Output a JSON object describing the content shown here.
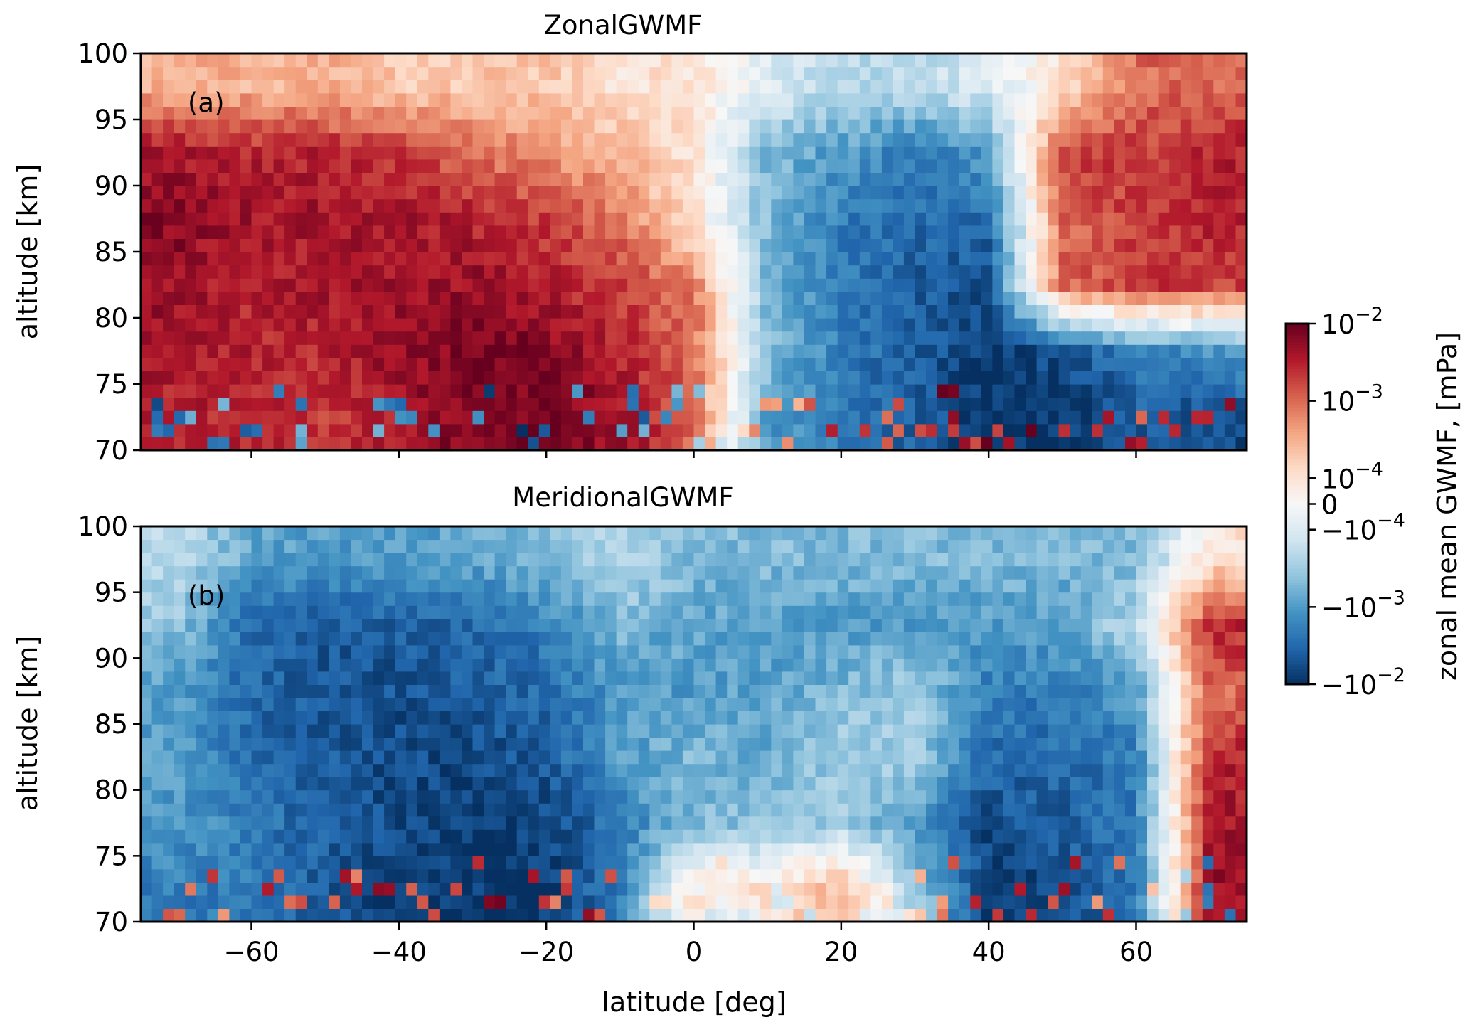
{
  "chart_data": [
    {
      "type": "heatmap",
      "title": "ZonalGWMF",
      "panel_label": "(a)",
      "xlabel": "",
      "ylabel": "altitude [km]",
      "xlim": [
        -75,
        75
      ],
      "ylim": [
        70,
        100
      ],
      "xticks": [
        -60,
        -40,
        -20,
        0,
        20,
        40,
        60
      ],
      "xtick_labels_shown": false,
      "yticks": [
        70,
        75,
        80,
        85,
        90,
        95,
        100
      ],
      "ytick_labels": [
        "70",
        "75",
        "80",
        "85",
        "90",
        "95",
        "100"
      ],
      "colormap": "RdBu_r",
      "approx_grid": {
        "latitude": [
          -70,
          -60,
          -50,
          -40,
          -30,
          -20,
          -10,
          0,
          10,
          20,
          30,
          40,
          50,
          60,
          70
        ],
        "altitude": [
          72.5,
          77.5,
          82.5,
          87.5,
          92.5,
          97.5
        ],
        "values_mPa": [
          [
            0.003,
            0.003,
            0.002,
            0.004,
            0.008,
            0.008,
            0.005,
            0.001,
            -0.001,
            -0.002,
            -0.004,
            -0.009,
            -0.009,
            -0.004,
            -0.006
          ],
          [
            0.004,
            0.003,
            0.003,
            0.005,
            0.007,
            0.007,
            0.003,
            0.001,
            -0.0004,
            -0.002,
            -0.004,
            -0.008,
            -0.005,
            -0.002,
            -0.001
          ],
          [
            0.005,
            0.003,
            0.004,
            0.004,
            0.005,
            0.003,
            0.002,
            0.0008,
            -0.0006,
            -0.002,
            -0.004,
            -0.005,
            0.001,
            0.002,
            0.002
          ],
          [
            0.006,
            0.004,
            0.004,
            0.004,
            0.003,
            0.002,
            0.0008,
            0.0001,
            -0.0005,
            -0.002,
            -0.003,
            -0.003,
            0.001,
            0.002,
            0.003
          ],
          [
            0.004,
            0.003,
            0.003,
            0.002,
            0.001,
            0.0005,
            0.0003,
            0.0001,
            -0.0005,
            -0.001,
            -0.002,
            -0.001,
            0.002,
            0.002,
            0.003
          ],
          [
            0.0003,
            0.0003,
            0.0003,
            0.0002,
            0.0002,
            0.0002,
            0.0001,
            0.0001,
            -0.0001,
            -0.0002,
            -0.0002,
            -0.0001,
            0.0001,
            0.001,
            0.001
          ]
        ]
      }
    },
    {
      "type": "heatmap",
      "title": "MeridionalGWMF",
      "panel_label": "(b)",
      "xlabel": "latitude [deg]",
      "ylabel": "altitude [km]",
      "xlim": [
        -75,
        75
      ],
      "ylim": [
        70,
        100
      ],
      "xticks": [
        -60,
        -40,
        -20,
        0,
        20,
        40,
        60
      ],
      "xtick_labels": [
        "−60",
        "−40",
        "−20",
        "0",
        "20",
        "40",
        "60"
      ],
      "yticks": [
        70,
        75,
        80,
        85,
        90,
        95,
        100
      ],
      "ytick_labels": [
        "70",
        "75",
        "80",
        "85",
        "90",
        "95",
        "100"
      ],
      "colormap": "RdBu_r",
      "approx_grid": {
        "latitude": [
          -70,
          -60,
          -50,
          -40,
          -30,
          -20,
          -10,
          0,
          10,
          20,
          30,
          40,
          50,
          60,
          70
        ],
        "altitude": [
          72.5,
          77.5,
          82.5,
          87.5,
          92.5,
          97.5
        ],
        "values_mPa": [
          [
            -0.002,
            -0.002,
            -0.004,
            -0.008,
            -0.008,
            -0.008,
            -0.002,
            0.0001,
            0.0001,
            0.0003,
            -0.0003,
            -0.008,
            -0.006,
            -0.002,
            0.005
          ],
          [
            -0.001,
            -0.002,
            -0.004,
            -0.006,
            -0.008,
            -0.007,
            -0.002,
            -0.0005,
            -0.0004,
            -0.0003,
            -0.001,
            -0.006,
            -0.004,
            -0.002,
            0.004
          ],
          [
            -0.001,
            -0.003,
            -0.004,
            -0.006,
            -0.006,
            -0.004,
            -0.001,
            -0.0005,
            -0.0008,
            -0.0003,
            -0.0003,
            -0.003,
            -0.003,
            -0.002,
            0.003
          ],
          [
            -0.001,
            -0.003,
            -0.005,
            -0.005,
            -0.004,
            -0.003,
            -0.001,
            -0.001,
            -0.0008,
            -0.0005,
            -0.0003,
            -0.002,
            -0.002,
            -0.001,
            0.001
          ],
          [
            -0.0004,
            -0.003,
            -0.004,
            -0.004,
            -0.003,
            -0.002,
            -0.0005,
            -0.0008,
            -0.001,
            -0.001,
            -0.001,
            -0.001,
            -0.001,
            -0.0002,
            0.003
          ],
          [
            -0.0002,
            -0.0008,
            -0.001,
            -0.001,
            -0.0008,
            -0.0005,
            -0.0002,
            -0.0005,
            -0.0005,
            -0.0005,
            -0.0005,
            -0.0005,
            -0.0005,
            -0.0005,
            0.0001
          ]
        ]
      }
    }
  ],
  "colorbar": {
    "label": "zonal mean GWMF, [mPa]",
    "scale": "symlog",
    "range": [
      -0.01,
      0.01
    ],
    "linthresh": 0.0001,
    "ticks": [
      {
        "value": 0.01,
        "sign": "",
        "base": "10",
        "exp": "−2"
      },
      {
        "value": 0.001,
        "sign": "",
        "base": "10",
        "exp": "−3"
      },
      {
        "value": 0.0001,
        "sign": "",
        "base": "10",
        "exp": "−4"
      },
      {
        "value": 0,
        "sign": "",
        "base": "0",
        "exp": ""
      },
      {
        "value": -0.0001,
        "sign": "−",
        "base": "10",
        "exp": "−4"
      },
      {
        "value": -0.001,
        "sign": "−",
        "base": "10",
        "exp": "−3"
      },
      {
        "value": -0.01,
        "sign": "−",
        "base": "10",
        "exp": "−2"
      }
    ]
  },
  "colors": [
    "#053061",
    "#2166ac",
    "#4393c3",
    "#92c5de",
    "#d1e5f0",
    "#f7f7f7",
    "#fddbc7",
    "#f4a582",
    "#d6604d",
    "#b2182b",
    "#67001f"
  ]
}
